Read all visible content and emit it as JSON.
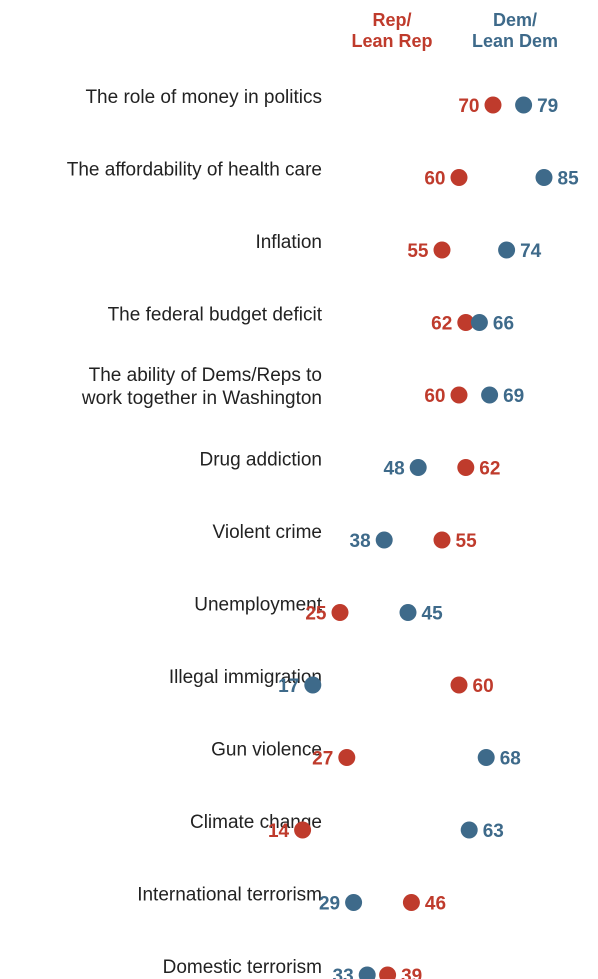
{
  "legend": {
    "rep": [
      "Rep/",
      "Lean Rep"
    ],
    "dem": [
      "Dem/",
      "Lean Dem"
    ]
  },
  "colors": {
    "rep": "#bf3b2c",
    "dem": "#3e6a8a"
  },
  "chart_data": {
    "type": "scatter",
    "subtype": "dot-plot",
    "title": "",
    "xlabel": "",
    "ylabel": "",
    "grid": false,
    "legend_position": "top-right",
    "categories": [
      [
        "The role of money in politics"
      ],
      [
        "The affordability of health care"
      ],
      [
        "Inflation"
      ],
      [
        "The federal budget deficit"
      ],
      [
        "The ability of Dems/Reps to",
        "work together in Washington"
      ],
      [
        "Drug addiction"
      ],
      [
        "Violent crime"
      ],
      [
        "Unemployment"
      ],
      [
        "Illegal immigration"
      ],
      [
        "Gun violence"
      ],
      [
        "Climate change"
      ],
      [
        "International terrorism"
      ],
      [
        "Domestic terrorism"
      ]
    ],
    "series": [
      {
        "name": "Rep/Lean Rep",
        "values": [
          70,
          60,
          55,
          62,
          60,
          62,
          55,
          25,
          60,
          27,
          14,
          46,
          39
        ]
      },
      {
        "name": "Dem/Lean Dem",
        "values": [
          79,
          85,
          74,
          66,
          69,
          48,
          38,
          45,
          17,
          68,
          63,
          29,
          33
        ]
      }
    ]
  }
}
